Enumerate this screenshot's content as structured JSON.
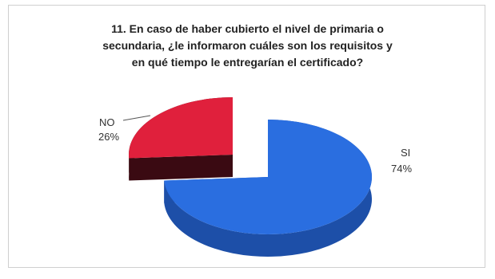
{
  "chart_data": {
    "type": "pie",
    "title_lines": [
      "11. En caso de haber cubierto el nivel de primaria o",
      "secundaria, ¿le informaron  cuáles son los requisitos y",
      "en qué tiempo le entregarían el certificado?"
    ],
    "slices": [
      {
        "label": "SI",
        "value": 74,
        "value_label": "74%",
        "color": "#2a6ee0",
        "side_color": "#1d4fa8"
      },
      {
        "label": "NO",
        "value": 26,
        "value_label": "26%",
        "color": "#e0203c",
        "side_color": "#3a0a12"
      }
    ],
    "legend": "none",
    "three_d": true,
    "exploded": true
  }
}
